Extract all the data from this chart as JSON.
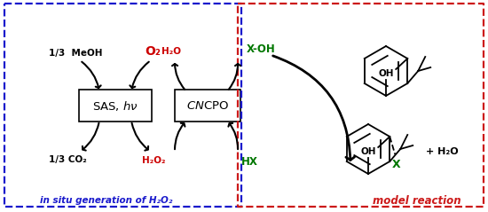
{
  "fig_width": 5.5,
  "fig_height": 2.39,
  "dpi": 100,
  "bg_color": "#ffffff",
  "blue_dashed_color": "#1a1acc",
  "red_dashed_color": "#cc1a1a",
  "black": "#000000",
  "red": "#cc0000",
  "green": "#007700",
  "blue": "#1a1acc",
  "label_meoh": "1/3  MeOH",
  "label_o2": "O₂",
  "label_co2": "1/3 CO₂",
  "label_h2o2": "H₂O₂",
  "label_h2o_left": "H₂O",
  "label_xoh": "X-OH",
  "label_hx": "HX",
  "label_insitu": "in situ generation of H₂O₂",
  "label_model": "model reaction",
  "label_plus_h2o": "+ H₂O",
  "label_oh": "OH",
  "label_x": "X"
}
